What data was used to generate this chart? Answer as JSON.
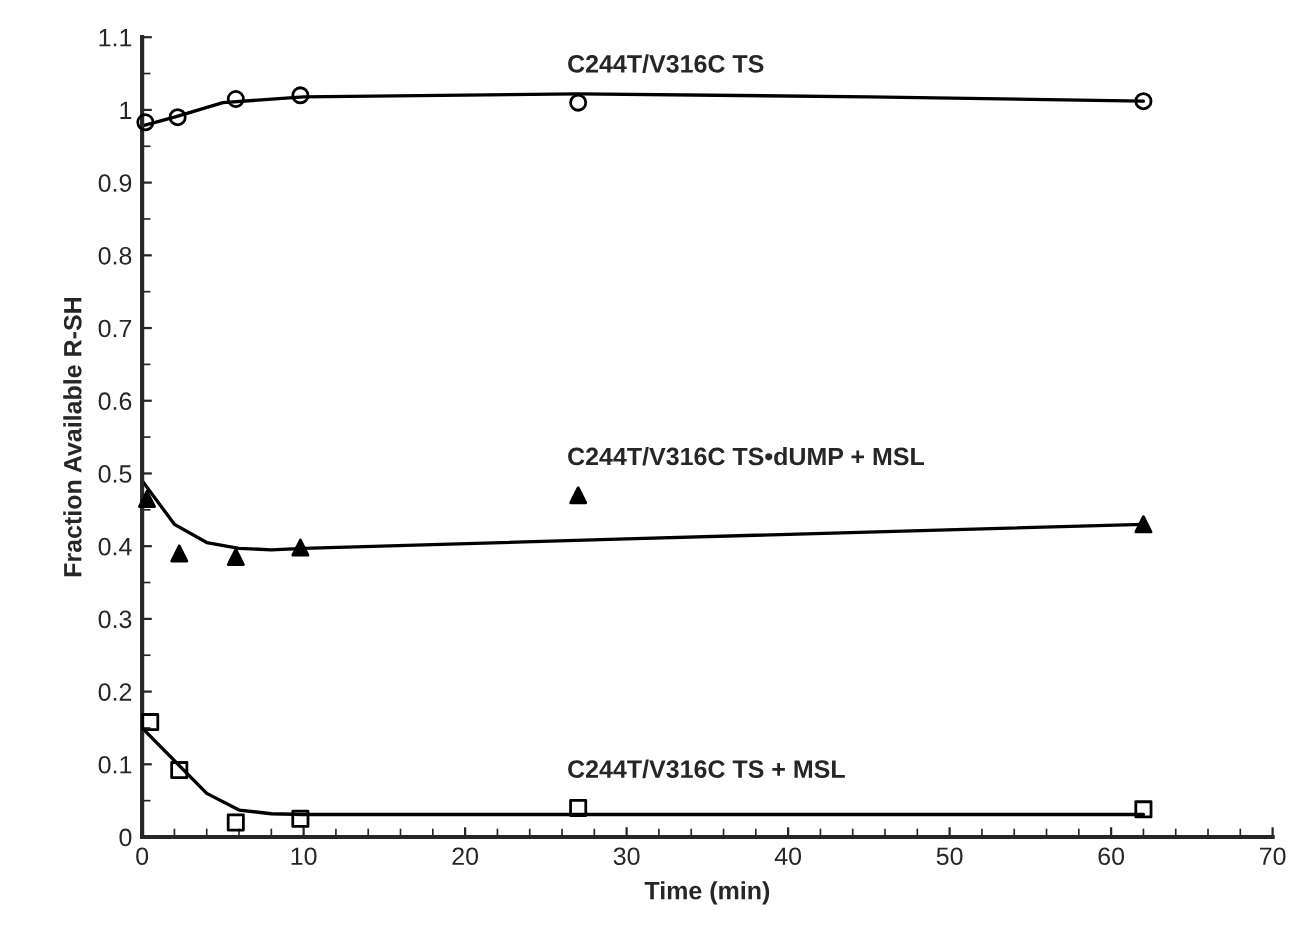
{
  "chart_data": {
    "type": "scatter",
    "xlabel": "Time (min)",
    "ylabel": "Fraction Available R-SH",
    "xlim": [
      0,
      70
    ],
    "ylim": [
      0,
      1.1
    ],
    "xticks": [
      0,
      10,
      20,
      30,
      40,
      50,
      60,
      70
    ],
    "yticks": [
      0,
      0.1,
      0.2,
      0.3,
      0.4,
      0.5,
      0.6,
      0.7,
      0.8,
      0.9,
      1,
      1.1
    ],
    "grid": false,
    "legend": false,
    "series": [
      {
        "name": "C244T/V316C TS",
        "color": "#000000",
        "marker": "circle",
        "x": [
          0.2,
          2.2,
          5.8,
          9.8,
          27,
          62
        ],
        "values": [
          0.983,
          0.99,
          1.015,
          1.02,
          1.01,
          1.012
        ]
      },
      {
        "name": "C244T/V316C TS•dUMP + MSL",
        "color": "#000000",
        "marker": "triangle",
        "x": [
          0.3,
          2.3,
          5.8,
          9.8,
          27,
          62
        ],
        "values": [
          0.465,
          0.39,
          0.385,
          0.398,
          0.47,
          0.43
        ]
      },
      {
        "name": "C244T/V316C TS + MSL",
        "color": "#000000",
        "marker": "square",
        "x": [
          0.5,
          2.3,
          5.8,
          9.8,
          27,
          62
        ],
        "values": [
          0.158,
          0.092,
          0.02,
          0.025,
          0.04,
          0.038
        ]
      },
      {
        "type": "line",
        "color": "#000000",
        "marker": "none",
        "line_style": "solid",
        "x": [
          0,
          2,
          5,
          10,
          27,
          45,
          62
        ],
        "values": [
          0.978,
          0.99,
          1.01,
          1.018,
          1.022,
          1.018,
          1.012
        ]
      },
      {
        "type": "line",
        "color": "#000000",
        "marker": "none",
        "line_style": "solid",
        "x": [
          0,
          2,
          4,
          6,
          8,
          10,
          30,
          62
        ],
        "values": [
          0.49,
          0.43,
          0.405,
          0.397,
          0.395,
          0.397,
          0.41,
          0.43
        ]
      },
      {
        "type": "line",
        "color": "#000000",
        "marker": "none",
        "line_style": "solid",
        "x": [
          0,
          2,
          4,
          6,
          8,
          10,
          62
        ],
        "values": [
          0.15,
          0.105,
          0.06,
          0.037,
          0.032,
          0.031,
          0.031
        ]
      }
    ]
  }
}
